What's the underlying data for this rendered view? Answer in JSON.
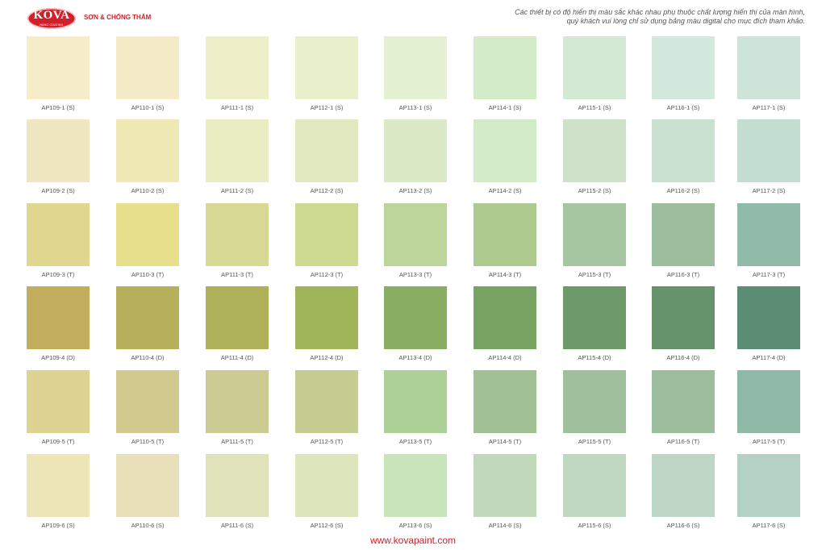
{
  "header": {
    "logo_text": "KOVA",
    "logo_subtext": "NANO COATING",
    "tagline": "SƠN & CHỐNG THẤM",
    "disclaimer_line1": "Các thiết bị có độ hiển thị màu sắc khác nhau phụ thuộc chất lượng hiển thị của màn hình,",
    "disclaimer_line2": "quý khách vui lòng chỉ sử dụng bảng màu digital cho mục đích tham khảo."
  },
  "brand_color": "#d0202a",
  "swatch_rows": [
    [
      {
        "code": "AP109-1 (S)",
        "color": "#f6edc8"
      },
      {
        "code": "AP110-1 (S)",
        "color": "#f4ebc6"
      },
      {
        "code": "AP111-1 (S)",
        "color": "#eeeec8"
      },
      {
        "code": "AP112-1 (S)",
        "color": "#e9efca"
      },
      {
        "code": "AP113-1 (S)",
        "color": "#e3f0d2"
      },
      {
        "code": "AP114-1 (S)",
        "color": "#d3ebc7"
      },
      {
        "code": "AP115-1 (S)",
        "color": "#d3e9d3"
      },
      {
        "code": "AP116-1 (S)",
        "color": "#d4e9dd"
      },
      {
        "code": "AP117-1 (S)",
        "color": "#cfe4d9"
      }
    ],
    [
      {
        "code": "AP109-2 (S)",
        "color": "#eee7c0"
      },
      {
        "code": "AP110-2 (S)",
        "color": "#efe9b6"
      },
      {
        "code": "AP111-2 (S)",
        "color": "#e8edc2"
      },
      {
        "code": "AP112-2 (S)",
        "color": "#e2e9c0"
      },
      {
        "code": "AP113-2 (S)",
        "color": "#dbeac6"
      },
      {
        "code": "AP114-2 (S)",
        "color": "#d3ebc6"
      },
      {
        "code": "AP115-2 (S)",
        "color": "#cde2c9"
      },
      {
        "code": "AP116-2 (S)",
        "color": "#cbe1d0"
      },
      {
        "code": "AP117-2 (S)",
        "color": "#c4ddd1"
      }
    ],
    [
      {
        "code": "AP109-3 (T)",
        "color": "#dfd690"
      },
      {
        "code": "AP110-3 (T)",
        "color": "#e7df8b"
      },
      {
        "code": "AP111-3 (T)",
        "color": "#d7d994"
      },
      {
        "code": "AP112-3 (T)",
        "color": "#cdda90"
      },
      {
        "code": "AP113-3 (T)",
        "color": "#bcd598"
      },
      {
        "code": "AP114-3 (T)",
        "color": "#aeca8f"
      },
      {
        "code": "AP115-3 (T)",
        "color": "#a5c6a0"
      },
      {
        "code": "AP116-3 (T)",
        "color": "#9cbe9f"
      },
      {
        "code": "AP117-3 (T)",
        "color": "#90bba8"
      }
    ],
    [
      {
        "code": "AP109-4 (D)",
        "color": "#c2ad5f"
      },
      {
        "code": "AP110-4 (D)",
        "color": "#b6b05a"
      },
      {
        "code": "AP111-4 (D)",
        "color": "#aeb05a"
      },
      {
        "code": "AP112-4 (D)",
        "color": "#a0b45a"
      },
      {
        "code": "AP113-4 (D)",
        "color": "#8aae61"
      },
      {
        "code": "AP114-4 (D)",
        "color": "#77a463"
      },
      {
        "code": "AP115-4 (D)",
        "color": "#6e9a69"
      },
      {
        "code": "AP116-4 (D)",
        "color": "#67936c"
      },
      {
        "code": "AP117-4 (D)",
        "color": "#5b8d74"
      }
    ],
    [
      {
        "code": "AP109-5 (T)",
        "color": "#ddd392"
      },
      {
        "code": "AP110-5 (T)",
        "color": "#d2c98f"
      },
      {
        "code": "AP111-5 (T)",
        "color": "#cbcb93"
      },
      {
        "code": "AP112-5 (T)",
        "color": "#c6cd93"
      },
      {
        "code": "AP113-5 (T)",
        "color": "#add096"
      },
      {
        "code": "AP114-5 (T)",
        "color": "#a2c096"
      },
      {
        "code": "AP115-5 (T)",
        "color": "#a0bf9c"
      },
      {
        "code": "AP116-5 (T)",
        "color": "#9cbd9e"
      },
      {
        "code": "AP117-5 (T)",
        "color": "#8fb8a6"
      }
    ],
    [
      {
        "code": "AP109-6 (S)",
        "color": "#ede4b8"
      },
      {
        "code": "AP110-6 (S)",
        "color": "#e7e0b8"
      },
      {
        "code": "AP111-6 (S)",
        "color": "#e0e2b9"
      },
      {
        "code": "AP112-6 (S)",
        "color": "#dde5ba"
      },
      {
        "code": "AP113-6 (S)",
        "color": "#c7e4bb"
      },
      {
        "code": "AP114-6 (S)",
        "color": "#c1d8ba"
      },
      {
        "code": "AP115-6 (S)",
        "color": "#c0d8c0"
      },
      {
        "code": "AP116-6 (S)",
        "color": "#bdd6c5"
      },
      {
        "code": "AP117-6 (S)",
        "color": "#b3d1c5"
      }
    ]
  ],
  "footer": {
    "website": "www.kovapaint.com"
  }
}
